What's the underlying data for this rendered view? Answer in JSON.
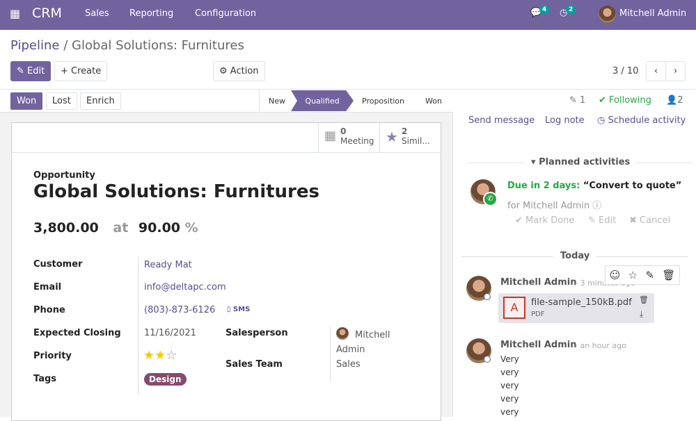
{
  "navbar": {
    "app": "CRM",
    "menu": [
      "Sales",
      "Reporting",
      "Configuration"
    ],
    "messages_count": "4",
    "activities_count": "2",
    "user": "Mitchell Admin",
    "color": "#71639e"
  },
  "breadcrumb": {
    "parent": "Pipeline",
    "separator": "/",
    "current": "Global Solutions: Furnitures"
  },
  "toolbar": {
    "edit": "Edit",
    "create": "Create",
    "action": "Action",
    "pager": "3 / 10"
  },
  "statusbar": {
    "buttons": [
      "Won",
      "Lost",
      "Enrich"
    ],
    "stages": [
      "New",
      "Qualified",
      "Proposition",
      "Won"
    ],
    "active_stage": "Qualified"
  },
  "smart_buttons": [
    {
      "count": "0",
      "label": "Meeting",
      "icon": "calendar-icon"
    },
    {
      "count": "2",
      "label": "Simil...",
      "icon": "star-icon"
    }
  ],
  "form": {
    "type": "Opportunity",
    "name": "Global Solutions: Furnitures",
    "revenue": "3,800.00",
    "at": "at",
    "probability": "90.00",
    "percent": "%",
    "fields": {
      "customer_label": "Customer",
      "customer": "Ready Mat",
      "email_label": "Email",
      "email": "info@deltapc.com",
      "phone_label": "Phone",
      "phone": "(803)-873-6126",
      "sms": "SMS",
      "closing_label": "Expected Closing",
      "closing": "11/16/2021",
      "priority_label": "Priority",
      "priority_stars": 2,
      "priority_max": 3,
      "tags_label": "Tags",
      "tag": "Design",
      "salesperson_label": "Salesperson",
      "salesperson": "Mitchell Admin",
      "team_label": "Sales Team",
      "team": "Sales"
    }
  },
  "chatter": {
    "attachments": "1",
    "following": "Following",
    "followers": "2",
    "send_message": "Send message",
    "log_note": "Log note",
    "schedule": "Schedule activity",
    "planned_title": "Planned activities",
    "activity": {
      "due": "Due in 2 days:",
      "summary": "“Convert to quote”",
      "for": "for Mitchell Admin",
      "mark_done": "Mark Done",
      "edit": "Edit",
      "cancel": "Cancel"
    },
    "today": "Today",
    "messages": [
      {
        "author": "Mitchell Admin",
        "time": "- 3 minutes ago",
        "file": "file-sample_150kB.pdf",
        "file_type": "PDF"
      },
      {
        "author": "Mitchell Admin",
        "time": "- an hour ago",
        "lines": [
          "Very",
          "very",
          "very",
          "very",
          "very"
        ]
      }
    ]
  }
}
